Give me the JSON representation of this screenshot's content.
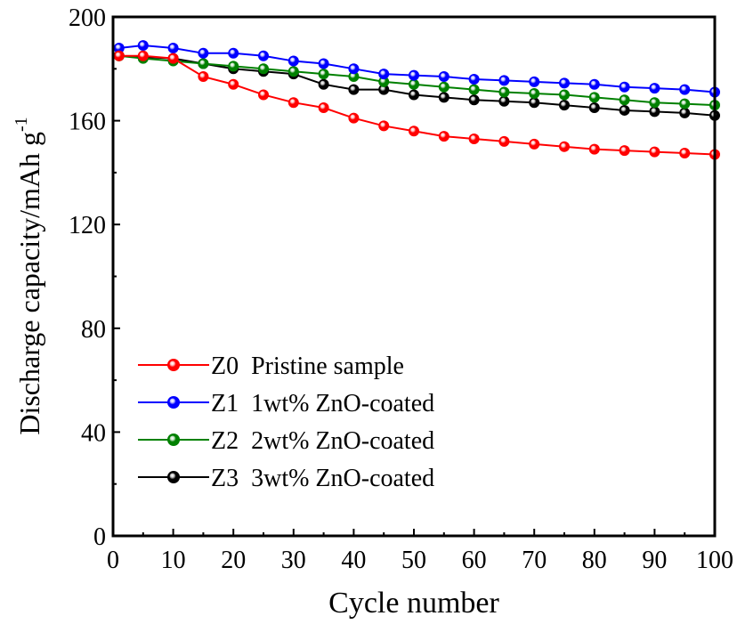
{
  "chart_data": {
    "type": "line",
    "title": "",
    "xlabel": "Cycle number",
    "ylabel": "Discharge capacity/mAh g",
    "ylabel_sup": "-1",
    "xlim": [
      0,
      100
    ],
    "ylim": [
      0,
      200
    ],
    "xticks": [
      0,
      10,
      20,
      30,
      40,
      50,
      60,
      70,
      80,
      90,
      100
    ],
    "yticks": [
      0,
      40,
      80,
      120,
      160,
      200
    ],
    "grid": false,
    "legend_position": "bottom-left",
    "x": [
      1,
      5,
      10,
      15,
      20,
      25,
      30,
      35,
      40,
      45,
      50,
      55,
      60,
      65,
      70,
      75,
      80,
      85,
      90,
      95,
      100
    ],
    "series": [
      {
        "name": "Z0  Pristine sample",
        "color": "#ff0000",
        "values": [
          185,
          185,
          184,
          177,
          174,
          170,
          167,
          165,
          161,
          158,
          156,
          154,
          153,
          152,
          151,
          150,
          149,
          148.5,
          148,
          147.5,
          147
        ]
      },
      {
        "name": "Z1  1wt% ZnO-coated",
        "color": "#0000ff",
        "values": [
          188,
          189,
          188,
          186,
          186,
          185,
          183,
          182,
          180,
          178,
          177.5,
          177,
          176,
          175.5,
          175,
          174.5,
          174,
          173,
          172.5,
          172,
          171
        ]
      },
      {
        "name": "Z2  2wt% ZnO-coated",
        "color": "#008000",
        "values": [
          185,
          184,
          183,
          182,
          181,
          180,
          179,
          178,
          177,
          175,
          174,
          173,
          172,
          171,
          170.5,
          170,
          169,
          168,
          167,
          166.5,
          166
        ]
      },
      {
        "name": "Z3  3wt% ZnO-coated",
        "color": "#000000",
        "values": [
          185,
          184.5,
          184,
          182,
          180,
          179,
          178,
          174,
          172,
          172,
          170,
          169,
          168,
          167.5,
          167,
          166,
          165,
          164,
          163.5,
          163,
          162
        ]
      }
    ]
  }
}
